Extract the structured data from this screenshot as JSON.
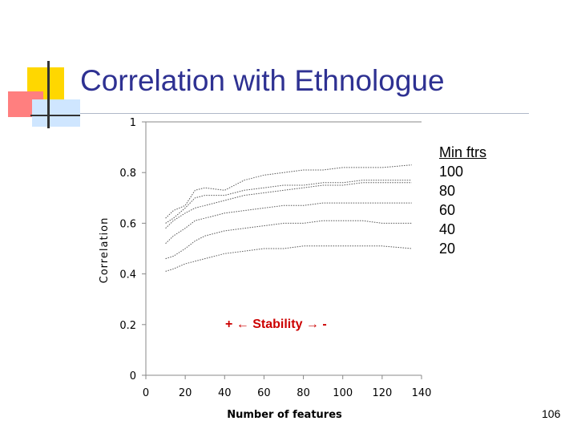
{
  "slide": {
    "title": "Correlation with Ethnologue",
    "page_number": "106",
    "stability_note": "+ ← Stability → -"
  },
  "colors": {
    "title": "#2e3192",
    "deco_yellow": "#ffd700",
    "deco_red": "#ff6060",
    "deco_blue": "#99ccff",
    "annotation_red": "#cc0000"
  },
  "chart_data": {
    "type": "line",
    "title": "",
    "xlabel": "Number of features",
    "ylabel": "Correlation",
    "xlim": [
      0,
      140
    ],
    "ylim": [
      0,
      1
    ],
    "x_ticks": [
      "0",
      "20",
      "40",
      "60",
      "80",
      "100",
      "120",
      "140"
    ],
    "y_ticks": [
      "0",
      "0.2",
      "0.4",
      "0.6",
      "0.8",
      "1"
    ],
    "legend_title": "Min ftrs",
    "legend_entries": [
      "100",
      "80",
      "60",
      "40",
      "20"
    ],
    "legend_placement": "right",
    "x": [
      10,
      14,
      20,
      25,
      30,
      40,
      50,
      60,
      70,
      80,
      90,
      100,
      110,
      120,
      135
    ],
    "series": [
      {
        "name": "100",
        "values": [
          0.62,
          0.65,
          0.67,
          0.73,
          0.74,
          0.73,
          0.77,
          0.79,
          0.8,
          0.81,
          0.81,
          0.82,
          0.82,
          0.82,
          0.83
        ]
      },
      {
        "name": "80",
        "values": [
          0.6,
          0.62,
          0.66,
          0.7,
          0.71,
          0.71,
          0.73,
          0.74,
          0.75,
          0.75,
          0.76,
          0.76,
          0.77,
          0.77,
          0.77
        ]
      },
      {
        "name": "60",
        "values": [
          0.58,
          0.61,
          0.64,
          0.66,
          0.67,
          0.69,
          0.71,
          0.72,
          0.73,
          0.74,
          0.75,
          0.75,
          0.76,
          0.76,
          0.76
        ]
      },
      {
        "name": "40",
        "values": [
          0.52,
          0.55,
          0.58,
          0.61,
          0.62,
          0.64,
          0.65,
          0.66,
          0.67,
          0.67,
          0.68,
          0.68,
          0.68,
          0.68,
          0.68
        ]
      },
      {
        "name": "20",
        "values": [
          0.46,
          0.47,
          0.5,
          0.53,
          0.55,
          0.57,
          0.58,
          0.59,
          0.6,
          0.6,
          0.61,
          0.61,
          0.61,
          0.6,
          0.6
        ]
      },
      {
        "name": "",
        "values": [
          0.41,
          0.42,
          0.44,
          0.45,
          0.46,
          0.48,
          0.49,
          0.5,
          0.5,
          0.51,
          0.51,
          0.51,
          0.51,
          0.51,
          0.5
        ]
      }
    ]
  }
}
